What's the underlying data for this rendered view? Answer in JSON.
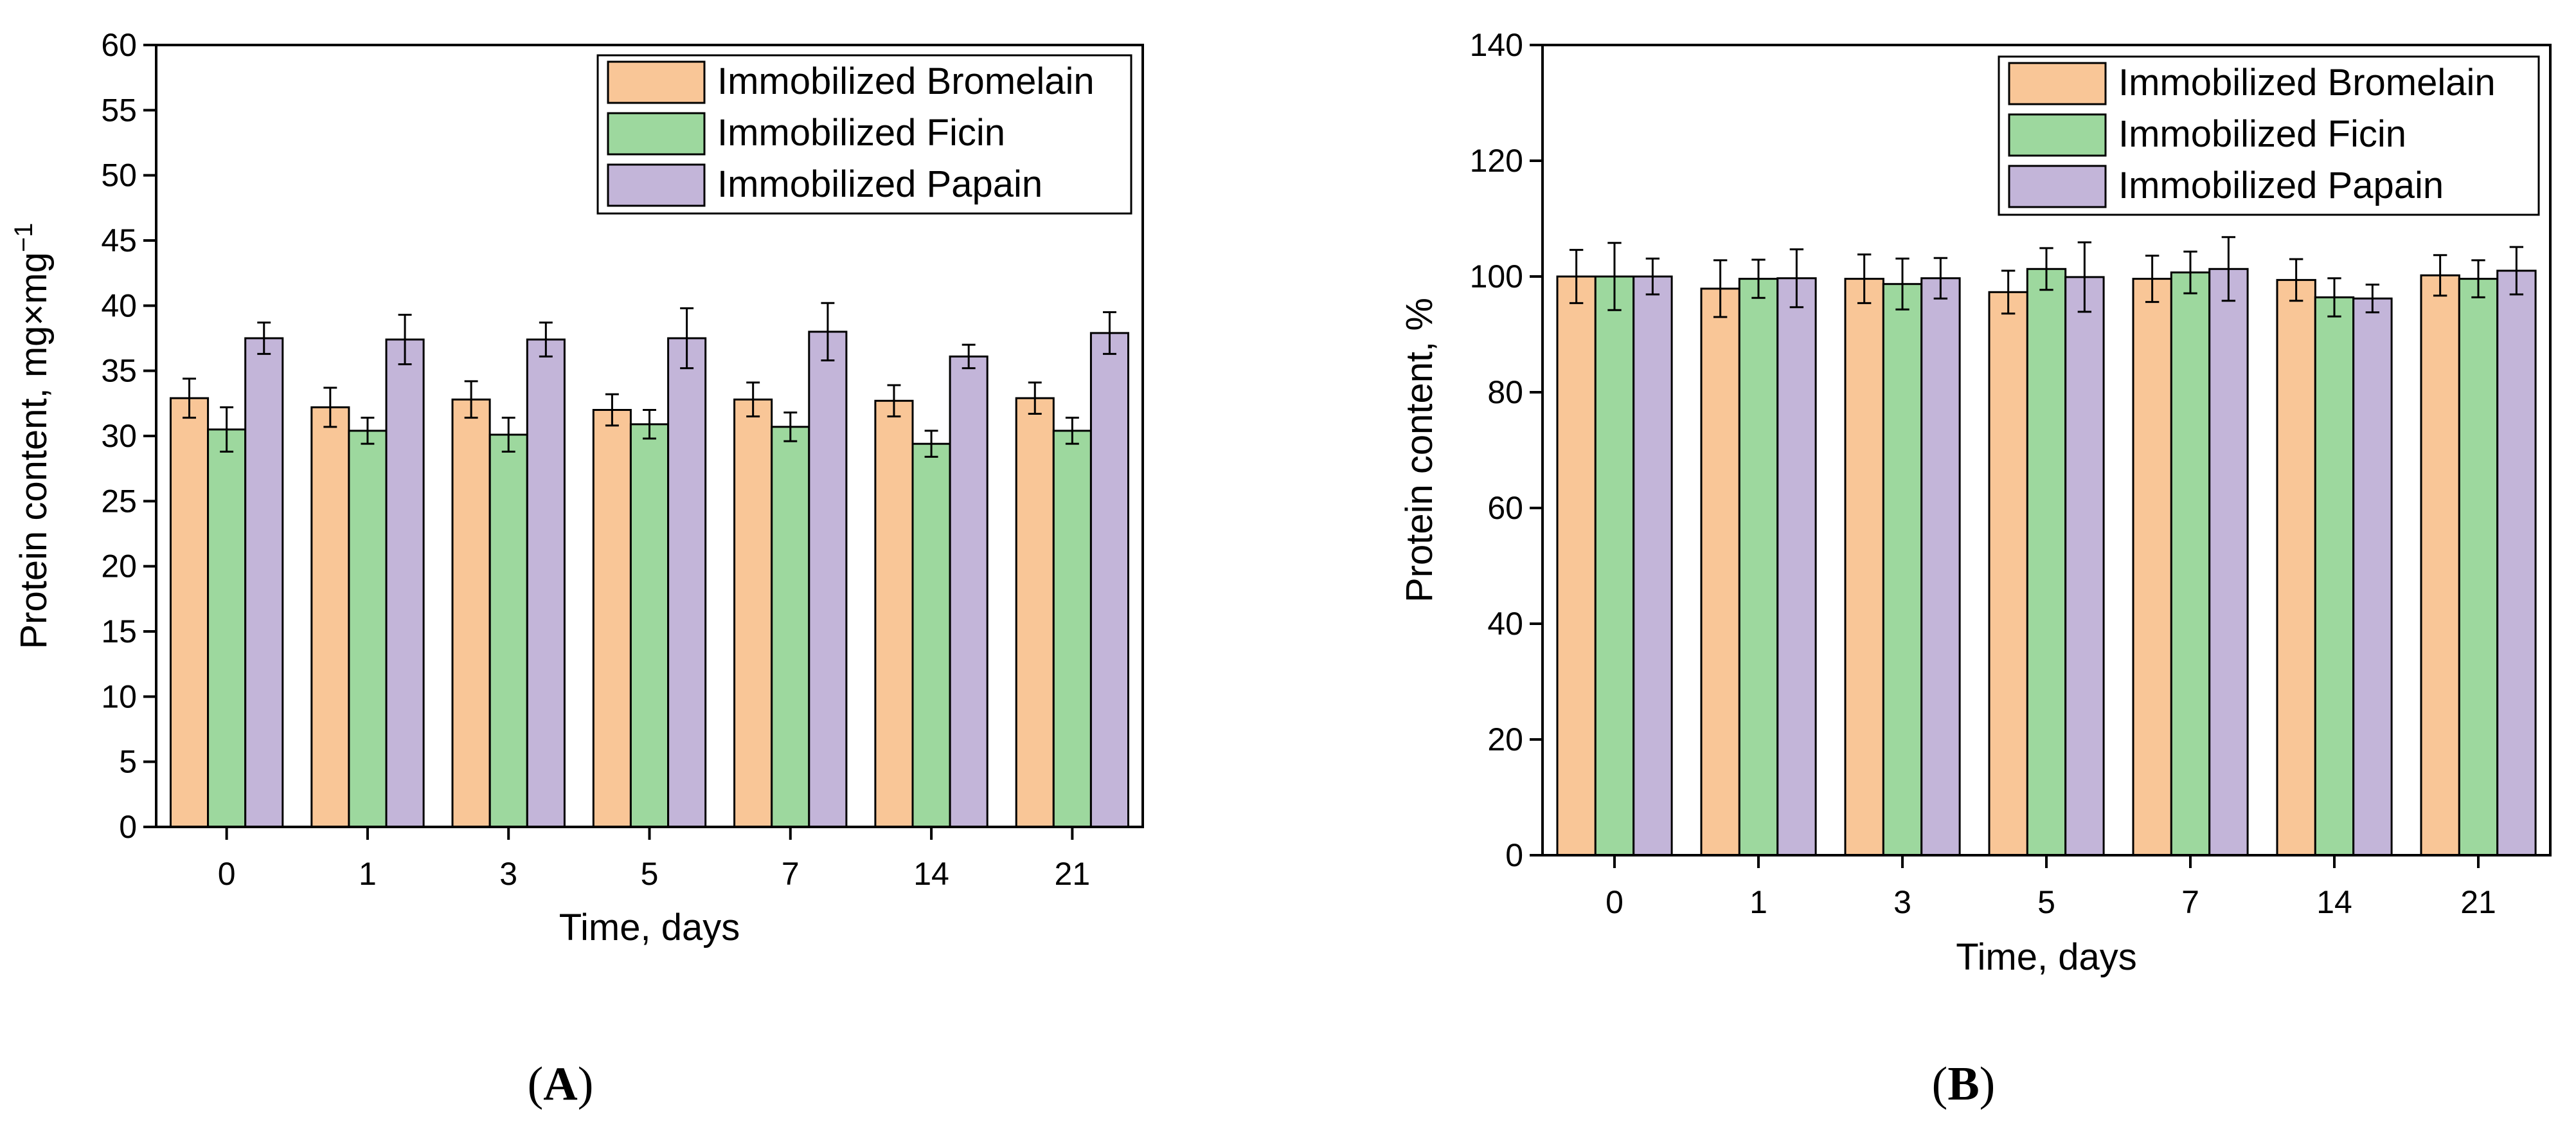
{
  "colors": {
    "bromelain": "#f9c697",
    "ficin": "#9dd89e",
    "papain": "#c3b5d9",
    "axis": "#000000",
    "background": "#ffffff"
  },
  "chart_data": [
    {
      "panel_label_parts": [
        "(",
        "A",
        ")"
      ],
      "type": "bar",
      "title": "",
      "xlabel": "Time, days",
      "ylabel": "Protein content, mg×mg",
      "ylabel_sup": "−1",
      "ylim": [
        0,
        60
      ],
      "yticks": [
        0,
        5,
        10,
        15,
        20,
        25,
        30,
        35,
        40,
        45,
        50,
        55,
        60
      ],
      "ytick_labels": [
        "0",
        "5",
        "10",
        "15",
        "20",
        "25",
        "30",
        "35",
        "40",
        "45",
        "50",
        "55",
        "60"
      ],
      "categories": [
        "0",
        "1",
        "3",
        "5",
        "7",
        "14",
        "21"
      ],
      "legend_position": "top-right",
      "grid": false,
      "series": [
        {
          "name": "Immobilized Bromelain",
          "color_key": "bromelain",
          "values": [
            32.9,
            32.2,
            32.8,
            32.0,
            32.8,
            32.7,
            32.9
          ],
          "errors": [
            1.5,
            1.5,
            1.4,
            1.2,
            1.3,
            1.2,
            1.2
          ]
        },
        {
          "name": "Immobilized Ficin",
          "color_key": "ficin",
          "values": [
            30.5,
            30.4,
            30.1,
            30.9,
            30.7,
            29.4,
            30.4
          ],
          "errors": [
            1.7,
            1.0,
            1.3,
            1.1,
            1.1,
            1.0,
            1.0
          ]
        },
        {
          "name": "Immobilized Papain",
          "color_key": "papain",
          "values": [
            37.5,
            37.4,
            37.4,
            37.5,
            38.0,
            36.1,
            37.9
          ],
          "errors": [
            1.2,
            1.9,
            1.3,
            2.3,
            2.2,
            0.9,
            1.6
          ]
        }
      ]
    },
    {
      "panel_label_parts": [
        "(",
        "B",
        ")"
      ],
      "type": "bar",
      "title": "",
      "xlabel": "Time, days",
      "ylabel": "Protein content, %",
      "ylabel_sup": "",
      "ylim": [
        0,
        140
      ],
      "yticks": [
        0,
        20,
        40,
        60,
        80,
        100,
        120,
        140
      ],
      "ytick_labels": [
        "0",
        "20",
        "40",
        "60",
        "80",
        "100",
        "120",
        "140"
      ],
      "categories": [
        "0",
        "1",
        "3",
        "5",
        "7",
        "14",
        "21"
      ],
      "legend_position": "top-right",
      "grid": false,
      "series": [
        {
          "name": "Immobilized Bromelain",
          "color_key": "bromelain",
          "values": [
            100.0,
            97.9,
            99.6,
            97.3,
            99.6,
            99.4,
            100.2
          ],
          "errors": [
            4.6,
            4.9,
            4.2,
            3.7,
            4.0,
            3.6,
            3.5
          ]
        },
        {
          "name": "Immobilized Ficin",
          "color_key": "ficin",
          "values": [
            100.0,
            99.6,
            98.7,
            101.3,
            100.7,
            96.4,
            99.6
          ],
          "errors": [
            5.8,
            3.3,
            4.4,
            3.6,
            3.6,
            3.3,
            3.2
          ]
        },
        {
          "name": "Immobilized Papain",
          "color_key": "papain",
          "values": [
            100.0,
            99.7,
            99.7,
            99.9,
            101.3,
            96.2,
            101.0
          ],
          "errors": [
            3.1,
            5.0,
            3.5,
            6.0,
            5.5,
            2.4,
            4.1
          ]
        }
      ]
    }
  ]
}
